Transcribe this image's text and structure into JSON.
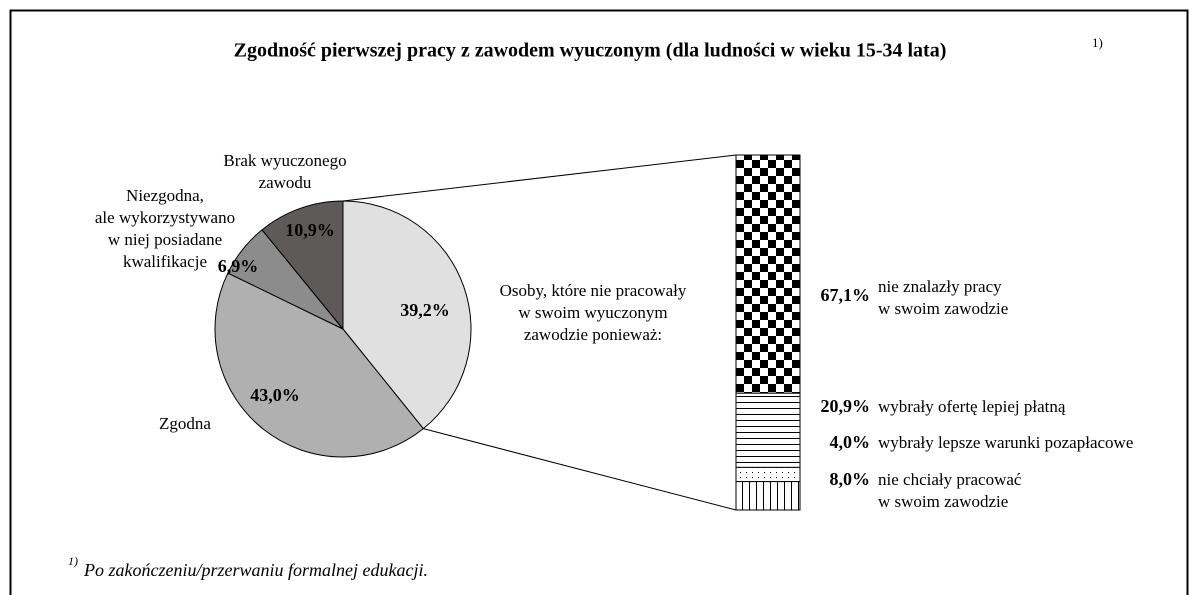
{
  "chart_data": {
    "type": "pie",
    "title": "Zgodność pierwszej pracy z zawodem wyuczonym (dla ludności w wieku 15-34 lata)",
    "title_note": "1)",
    "categories": [
      [
        "Osoby, które nie pracowały",
        "w swoim wyuczonym",
        "zawodzie ponieważ:"
      ],
      [
        "Zgodna"
      ],
      [
        "Niezgodna,",
        "ale wykorzystywano",
        "w niej posiadane",
        "kwalifikacje"
      ],
      [
        "Brak wyuczonego",
        "zawodu"
      ]
    ],
    "values": [
      39.2,
      43.0,
      6.9,
      10.9
    ],
    "value_labels": [
      "39,2%",
      "43,0%",
      "6,9%",
      "10,9%"
    ],
    "colors": [
      "#e0e0e0",
      "#b0b0b0",
      "#8c8c8c",
      "#5e5a5a"
    ],
    "breakdown": {
      "type": "bar",
      "of": 0,
      "categories": [
        [
          "nie znalazły pracy",
          "w swoim zawodzie"
        ],
        [
          "wybrały ofertę lepiej płatną"
        ],
        [
          "wybrały lepsze warunki pozapłacowe"
        ],
        [
          "nie chciały pracować",
          "w swoim zawodzie"
        ]
      ],
      "values": [
        67.1,
        20.9,
        4.0,
        8.0
      ],
      "value_labels": [
        "67,1%",
        "20,9%",
        "4,0%",
        "8,0%"
      ],
      "patterns": [
        "checker",
        "hlines",
        "dots",
        "vlines"
      ]
    },
    "footnote_marker": "1)",
    "footnote": "Po zakończeniu/przerwaniu formalnej edukacji."
  }
}
